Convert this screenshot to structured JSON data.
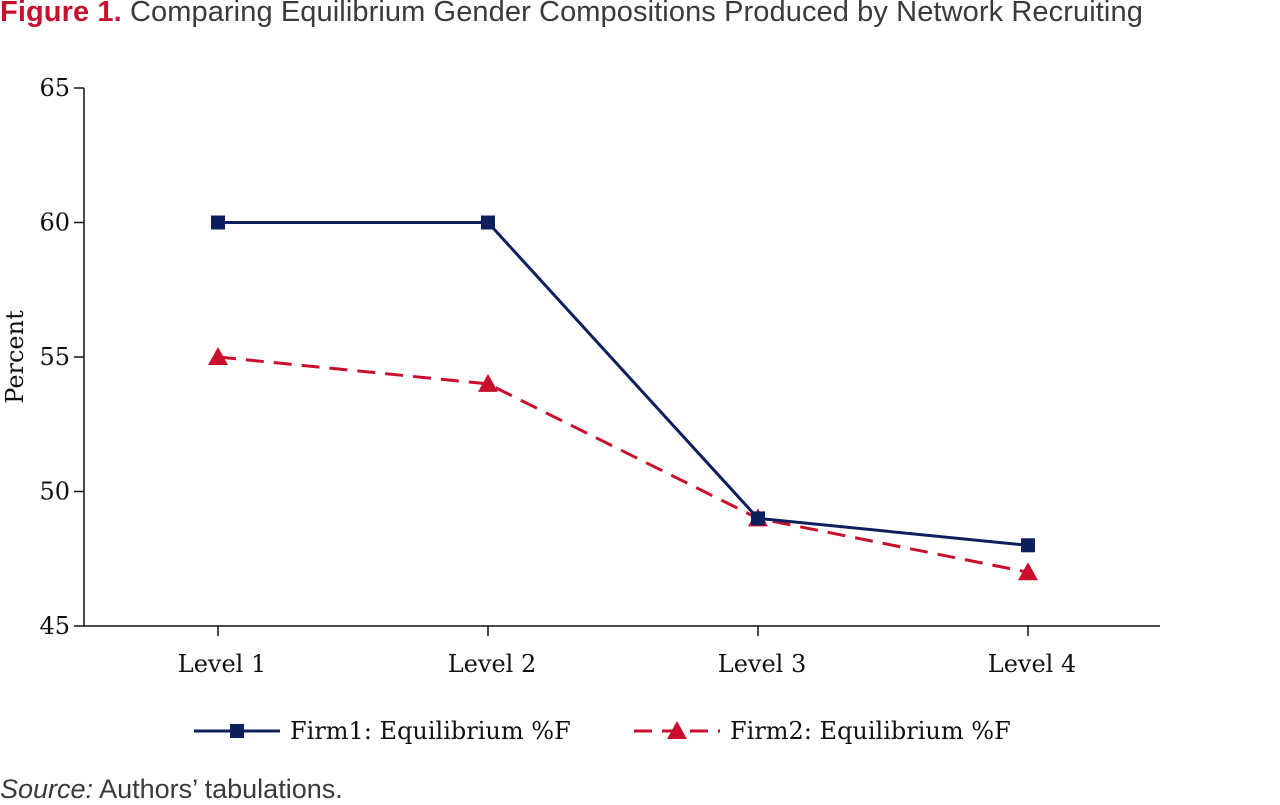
{
  "figure": {
    "label": "Figure 1.",
    "caption": "Comparing Equilibrium Gender Compositions Produced by Network Recruiting"
  },
  "source": {
    "label": "Source:",
    "text": "Authors’ tabulations."
  },
  "chart_data": {
    "type": "line",
    "title": "",
    "xlabel": "",
    "ylabel": "Percent",
    "categories": [
      "Level 1",
      "Level 2",
      "Level 3",
      "Level 4"
    ],
    "ylim": [
      45,
      65
    ],
    "yticks": [
      45,
      50,
      55,
      60,
      65
    ],
    "grid": false,
    "legend_position": "bottom",
    "series": [
      {
        "name": "Firm1: Equilibrium %F",
        "values": [
          60,
          60,
          49,
          48
        ],
        "color": "#0d1f5c",
        "line_style": "solid",
        "marker": "square"
      },
      {
        "name": "Firm2: Equilibrium %F",
        "values": [
          55,
          54,
          49,
          47
        ],
        "color": "#c8102e",
        "line_style": "dashed",
        "marker": "triangle"
      }
    ]
  }
}
